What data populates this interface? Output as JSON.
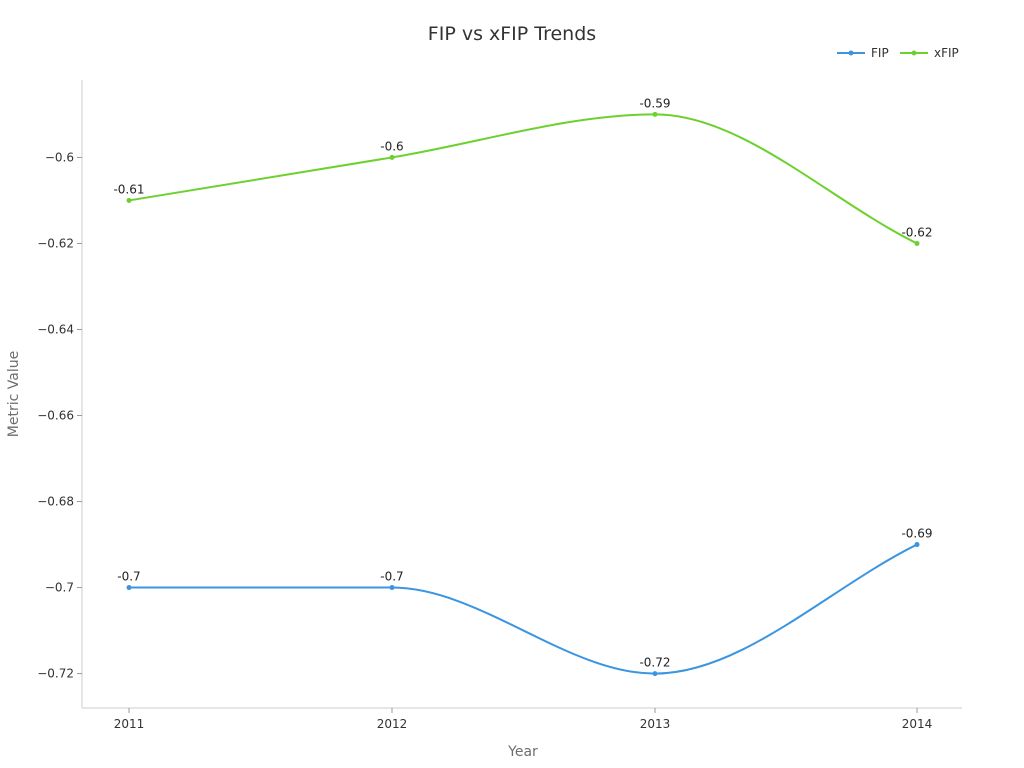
{
  "chart_data": {
    "type": "line",
    "title": "FIP vs xFIP Trends",
    "xlabel": "Year",
    "ylabel": "Metric Value",
    "categories": [
      "2011",
      "2012",
      "2013",
      "2014"
    ],
    "ylim": [
      -0.728,
      -0.582
    ],
    "yticks": [
      -0.72,
      -0.7,
      -0.68,
      -0.66,
      -0.64,
      -0.62,
      -0.6
    ],
    "ytick_labels": [
      "−0.72",
      "−0.7",
      "−0.68",
      "−0.66",
      "−0.64",
      "−0.62",
      "−0.6"
    ],
    "grid": false,
    "smooth": true,
    "legend_position": "top-right",
    "series": [
      {
        "name": "FIP",
        "color": "#3b95e0",
        "values": [
          -0.7,
          -0.7,
          -0.72,
          -0.69
        ],
        "labels": [
          "-0.7",
          "-0.7",
          "-0.72",
          "-0.69"
        ]
      },
      {
        "name": "xFIP",
        "color": "#6cd12e",
        "values": [
          -0.61,
          -0.6,
          -0.59,
          -0.62
        ],
        "labels": [
          "-0.61",
          "-0.6",
          "-0.59",
          "-0.62"
        ]
      }
    ]
  }
}
